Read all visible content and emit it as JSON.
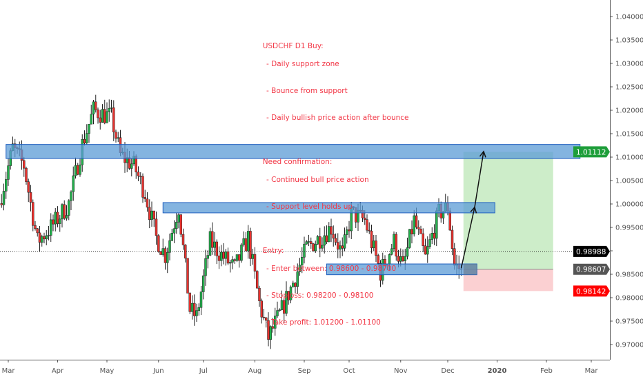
{
  "chart_data": {
    "type": "candlestick",
    "symbol": "USDCHF",
    "timeframe": "D1",
    "x_unit": "trading days since Mar 1 2019",
    "xlim": [
      -4,
      268
    ],
    "ylim": [
      0.9665,
      1.0435
    ],
    "y_ticks": [
      0.97,
      0.975,
      0.98,
      0.985,
      0.99,
      0.995,
      1.0,
      1.005,
      1.01,
      1.015,
      1.02,
      1.025,
      1.03,
      1.035,
      1.04
    ],
    "y_tick_labels": [
      "0.97000",
      "0.97500",
      "0.98000",
      "0.98500",
      "",
      "0.99500",
      "1.00000",
      "1.00500",
      "1.01000",
      "1.01500",
      "1.02000",
      "1.02500",
      "1.03000",
      "1.03500",
      "1.04000"
    ],
    "x_ticks": [
      {
        "x": 0,
        "label": "Mar"
      },
      {
        "x": 22,
        "label": "Apr"
      },
      {
        "x": 44,
        "label": "May"
      },
      {
        "x": 67,
        "label": "Jun"
      },
      {
        "x": 87,
        "label": "Jul"
      },
      {
        "x": 110,
        "label": "Aug"
      },
      {
        "x": 132,
        "label": "Sep"
      },
      {
        "x": 152,
        "label": "Oct"
      },
      {
        "x": 175,
        "label": "Nov"
      },
      {
        "x": 196,
        "label": "Dec"
      },
      {
        "x": 218,
        "label": "2020"
      },
      {
        "x": 240,
        "label": "Feb"
      },
      {
        "x": 260,
        "label": "Mar"
      }
    ],
    "close_path": [
      [
        -4,
        1.0001
      ],
      [
        2,
        1.0119
      ],
      [
        7,
        1.0082
      ],
      [
        13,
        0.992
      ],
      [
        19,
        0.995
      ],
      [
        27,
        1.0001
      ],
      [
        33,
        1.0127
      ],
      [
        38,
        1.02
      ],
      [
        46,
        1.0185
      ],
      [
        50,
        1.0104
      ],
      [
        56,
        1.0082
      ],
      [
        61,
        1.0024
      ],
      [
        66,
        0.9928
      ],
      [
        70,
        0.9891
      ],
      [
        76,
        0.9994
      ],
      [
        81,
        0.9774
      ],
      [
        84,
        0.9759
      ],
      [
        90,
        0.992
      ],
      [
        95,
        0.9891
      ],
      [
        101,
        0.9862
      ],
      [
        107,
        0.9928
      ],
      [
        112,
        0.9788
      ],
      [
        116,
        0.9715
      ],
      [
        122,
        0.9774
      ],
      [
        127,
        0.9832
      ],
      [
        133,
        0.9906
      ],
      [
        139,
        0.9928
      ],
      [
        144,
        0.995
      ],
      [
        149,
        0.9891
      ],
      [
        153,
        0.998
      ],
      [
        159,
        0.9965
      ],
      [
        166,
        0.9854
      ],
      [
        172,
        0.992
      ],
      [
        176,
        0.9862
      ],
      [
        181,
        0.9965
      ],
      [
        186,
        0.9884
      ],
      [
        192,
        0.998
      ],
      [
        196,
        0.9994
      ],
      [
        199,
        0.9869
      ],
      [
        202,
        0.98607
      ]
    ],
    "zones": [
      {
        "name": "resistance-zone-top",
        "x": [
          -1,
          255
        ],
        "y": [
          1.0097,
          1.0127
        ]
      },
      {
        "name": "resistance-zone-mid",
        "x": [
          69,
          217
        ],
        "y": [
          0.9981,
          1.0003
        ]
      },
      {
        "name": "support-zone",
        "x": [
          142,
          209
        ],
        "y": [
          0.9849,
          0.9872
        ]
      }
    ],
    "position": {
      "x": [
        203,
        243
      ],
      "entry": 0.98607,
      "target": 1.01112,
      "stop": 0.98142
    },
    "projection_path": [
      [
        202,
        0.9863
      ],
      [
        208,
        0.9993
      ],
      [
        212,
        1.0112
      ]
    ],
    "current_price": 0.98988,
    "price_labels": [
      {
        "value": "1.01112",
        "price": 1.01112,
        "color": "#1e9e3a"
      },
      {
        "value": "0.98988",
        "price": 0.98988,
        "color": "#000000"
      },
      {
        "value": "0.98607",
        "price": 0.98607,
        "color": "#555555"
      },
      {
        "value": "0.98142",
        "price": 0.98142,
        "color": "#ff0000"
      }
    ],
    "colors": {
      "up": "#22b14c",
      "down": "#e8322e",
      "zone": "#5b9bd5",
      "zone_border": "#1f5fbf",
      "profit": "#c8ebc3",
      "loss": "#fbcbcd"
    }
  },
  "note": {
    "title": "USDCHF D1 Buy:",
    "reasons": [
      "- Daily support zone",
      "- Bounce from support",
      "- Daily bullish price action after bounce"
    ],
    "confirm_title": "Need confirmation:",
    "confirm": [
      "- Continued bull price action",
      "- Support level holds up"
    ],
    "entry_title": "Entry:",
    "entry": [
      "- Enter between: 0.98600 - 0.98700",
      "- Stoploss: 0.98200 - 0.98100",
      "- Take profit: 1.01200 - 1.01100"
    ]
  }
}
